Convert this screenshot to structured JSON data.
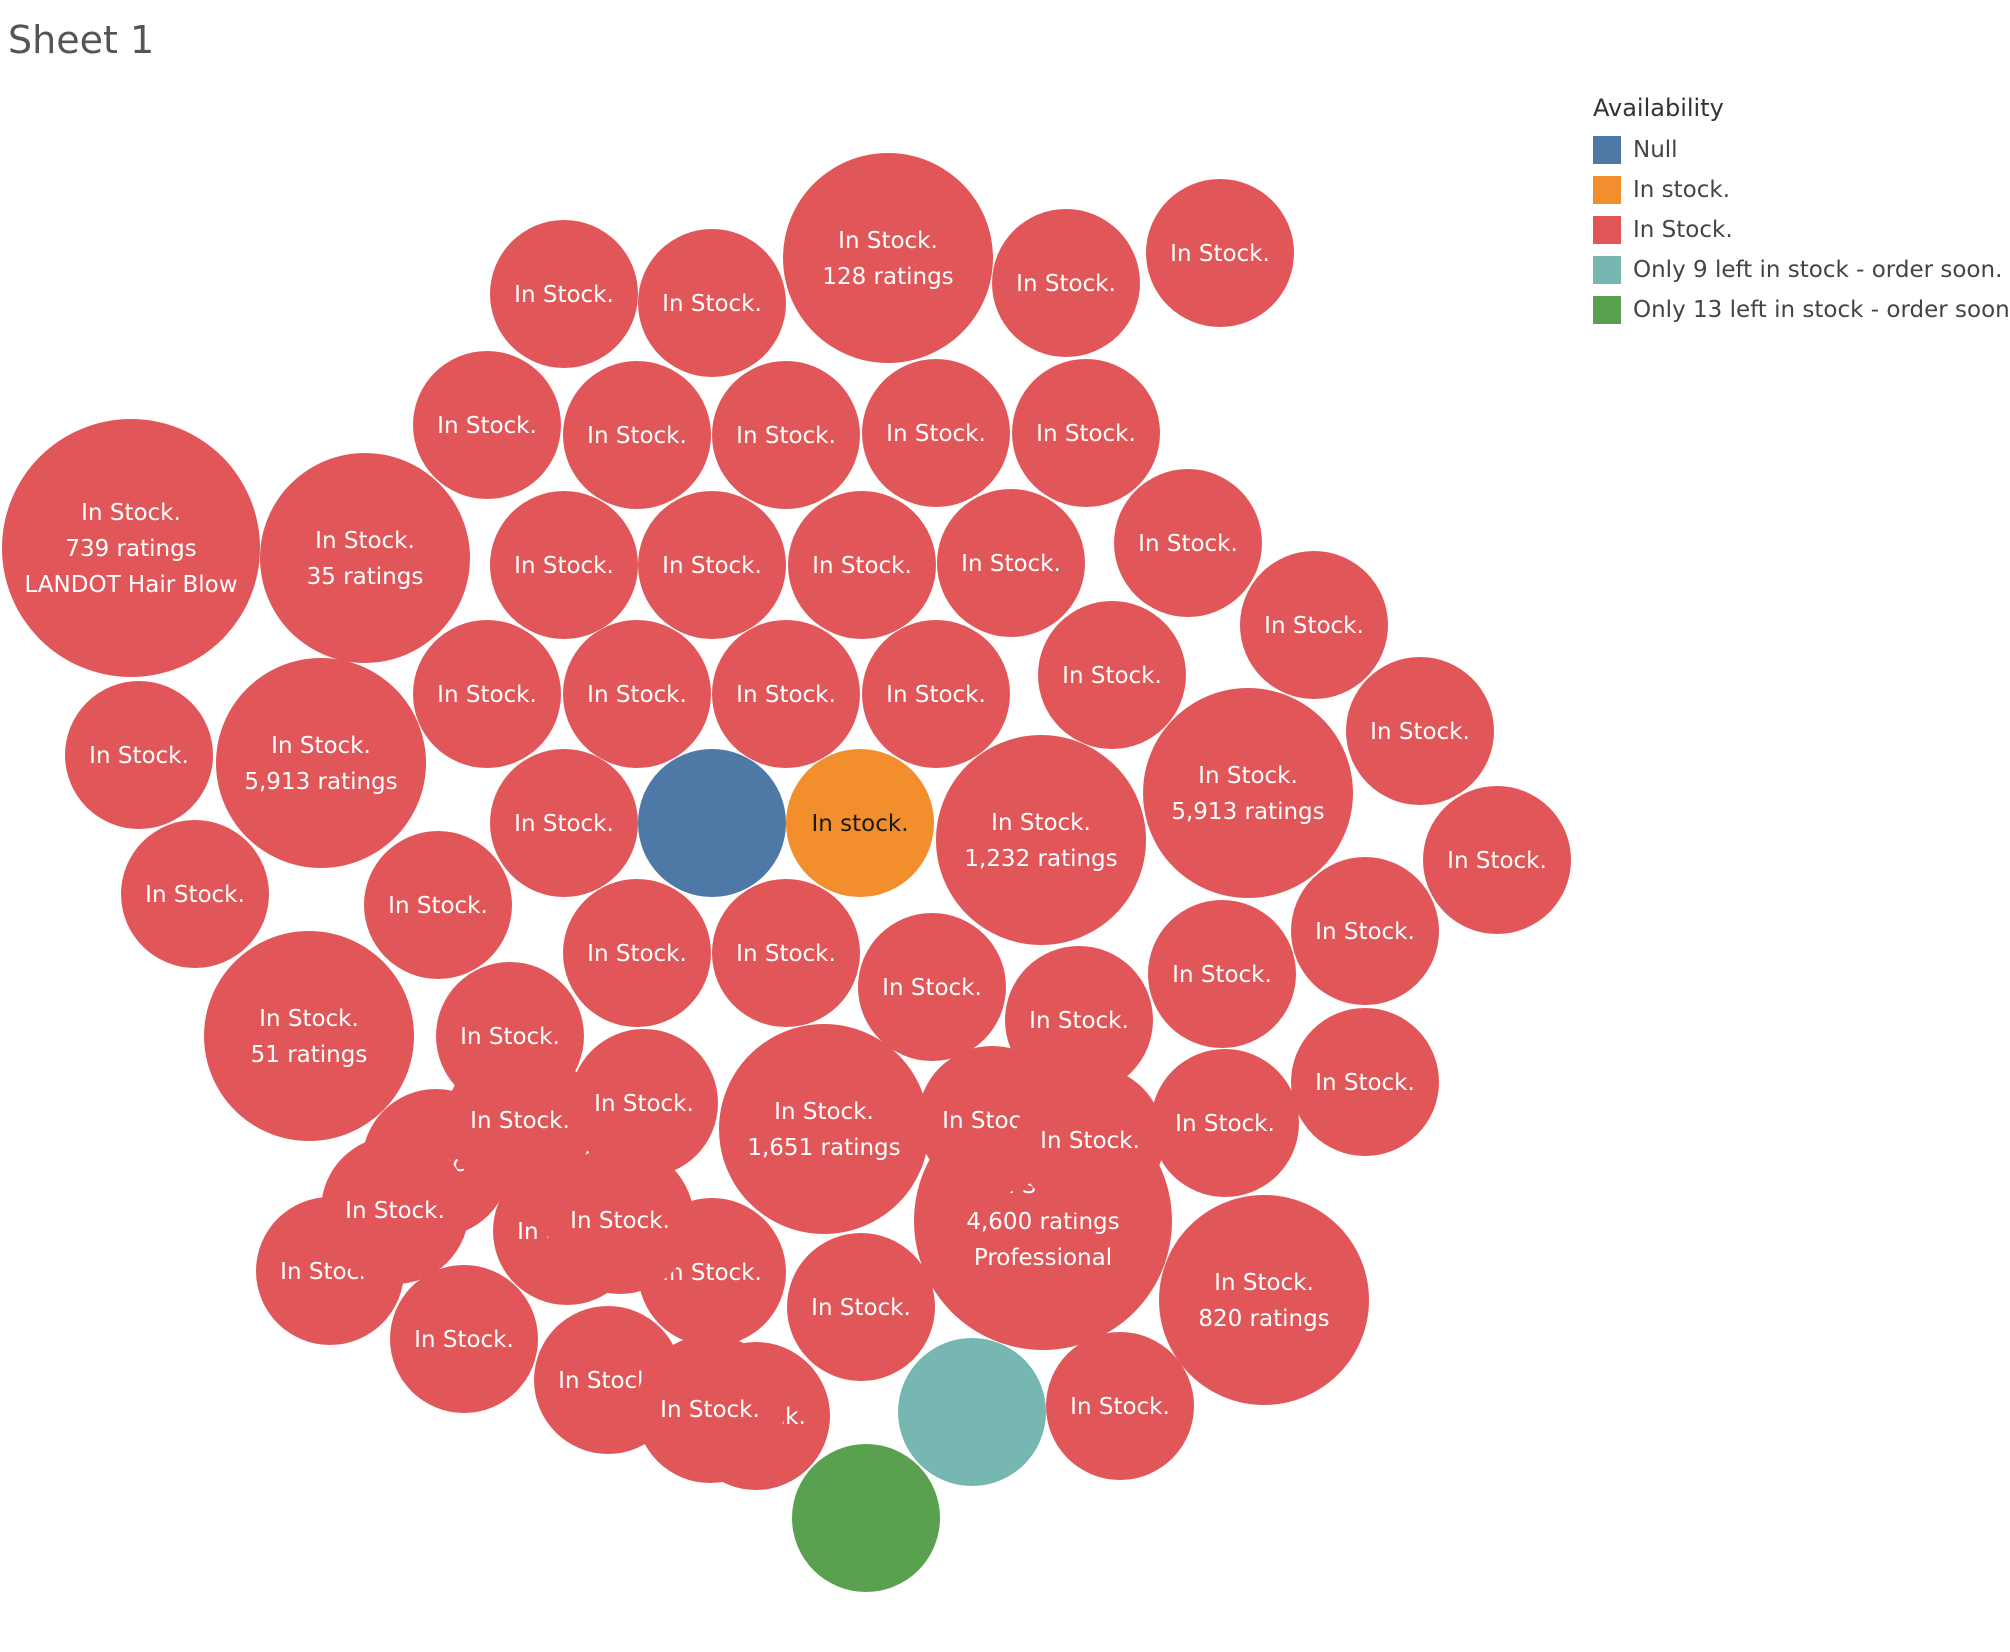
{
  "sheet": {
    "title": "Sheet 1"
  },
  "colors": {
    "Null": "#4e79a7",
    "In stock.": "#f28e2b",
    "In Stock.": "#e15759",
    "Only 9 left in stock - order soon.": "#76b7b2",
    "Only 13 left in stock - order soon.": "#59a14f"
  },
  "legend": {
    "title": "Availability",
    "items": [
      {
        "label": "Null",
        "color": "#4e79a7"
      },
      {
        "label": "In stock.",
        "color": "#f28e2b"
      },
      {
        "label": "In Stock.",
        "color": "#e15759"
      },
      {
        "label": "Only 9 left in stock - order soon.",
        "color": "#76b7b2"
      },
      {
        "label": "Only 13 left in stock - order soon.",
        "color": "#59a14f"
      }
    ]
  },
  "chart_data": {
    "type": "packed-bubble",
    "color_field": "Availability",
    "bubbles": [
      {
        "availability": "In Stock.",
        "lines": [
          "In Stock.",
          "739 ratings",
          "LANDOT Hair Blow"
        ]
      },
      {
        "availability": "In Stock.",
        "lines": [
          "In Stock.",
          "35 ratings"
        ]
      },
      {
        "availability": "In Stock.",
        "lines": [
          "In Stock.",
          "128 ratings"
        ]
      },
      {
        "availability": "In Stock.",
        "lines": [
          "In Stock.",
          "5,913 ratings"
        ]
      },
      {
        "availability": "In Stock.",
        "lines": [
          "In Stock.",
          "5,913 ratings"
        ]
      },
      {
        "availability": "In Stock.",
        "lines": [
          "In Stock.",
          "1,232 ratings"
        ]
      },
      {
        "availability": "In Stock.",
        "lines": [
          "In Stock.",
          "51 ratings"
        ]
      },
      {
        "availability": "In Stock.",
        "lines": [
          "In Stock.",
          "1,651 ratings"
        ]
      },
      {
        "availability": "In Stock.",
        "lines": [
          "In Stock.",
          "4,600 ratings",
          "Professional"
        ]
      },
      {
        "availability": "In Stock.",
        "lines": [
          "In Stock.",
          "820 ratings"
        ]
      },
      {
        "availability": "Null",
        "lines": []
      },
      {
        "availability": "In stock.",
        "lines": [
          "In stock."
        ]
      },
      {
        "availability": "Only 9 left in stock - order soon.",
        "lines": []
      },
      {
        "availability": "Only 13 left in stock - order soon.",
        "lines": []
      },
      {
        "availability": "In Stock.",
        "lines": [
          "In Stock."
        ]
      },
      {
        "availability": "In Stock.",
        "lines": [
          "In Stock."
        ]
      },
      {
        "availability": "In Stock.",
        "lines": [
          "In Stock."
        ]
      },
      {
        "availability": "In Stock.",
        "lines": [
          "In Stock."
        ]
      },
      {
        "availability": "In Stock.",
        "lines": [
          "In Stock."
        ]
      },
      {
        "availability": "In Stock.",
        "lines": [
          "In Stock."
        ]
      },
      {
        "availability": "In Stock.",
        "lines": [
          "In Stock."
        ]
      },
      {
        "availability": "In Stock.",
        "lines": [
          "In Stock."
        ]
      },
      {
        "availability": "In Stock.",
        "lines": [
          "In Stock."
        ]
      },
      {
        "availability": "In Stock.",
        "lines": [
          "In Stock."
        ]
      },
      {
        "availability": "In Stock.",
        "lines": [
          "In Stock."
        ]
      },
      {
        "availability": "In Stock.",
        "lines": [
          "In Stock."
        ]
      },
      {
        "availability": "In Stock.",
        "lines": [
          "In Stock."
        ]
      },
      {
        "availability": "In Stock.",
        "lines": [
          "In Stock."
        ]
      },
      {
        "availability": "In Stock.",
        "lines": [
          "In Stock."
        ]
      },
      {
        "availability": "In Stock.",
        "lines": [
          "In Stock."
        ]
      },
      {
        "availability": "In Stock.",
        "lines": [
          "In Stock."
        ]
      },
      {
        "availability": "In Stock.",
        "lines": [
          "In Stock."
        ]
      },
      {
        "availability": "In Stock.",
        "lines": [
          "In Stock."
        ]
      },
      {
        "availability": "In Stock.",
        "lines": [
          "In Stock."
        ]
      },
      {
        "availability": "In Stock.",
        "lines": [
          "In Stock."
        ]
      },
      {
        "availability": "In Stock.",
        "lines": [
          "In Stock."
        ]
      },
      {
        "availability": "In Stock.",
        "lines": [
          "In Stock."
        ]
      },
      {
        "availability": "In Stock.",
        "lines": [
          "In Stock."
        ]
      },
      {
        "availability": "In Stock.",
        "lines": [
          "In Stock."
        ]
      },
      {
        "availability": "In Stock.",
        "lines": [
          "In Stock."
        ]
      },
      {
        "availability": "In Stock.",
        "lines": [
          "In Stock."
        ]
      },
      {
        "availability": "In Stock.",
        "lines": [
          "In Stock."
        ]
      },
      {
        "availability": "In Stock.",
        "lines": [
          "In Stock."
        ]
      },
      {
        "availability": "In Stock.",
        "lines": [
          "In Stock."
        ]
      },
      {
        "availability": "In Stock.",
        "lines": [
          "In Stock."
        ]
      },
      {
        "availability": "In Stock.",
        "lines": [
          "In Stock."
        ]
      },
      {
        "availability": "In Stock.",
        "lines": [
          "In Stock."
        ]
      },
      {
        "availability": "In Stock.",
        "lines": [
          "In Stock."
        ]
      },
      {
        "availability": "In Stock.",
        "lines": [
          "In Stock."
        ]
      },
      {
        "availability": "In Stock.",
        "lines": [
          "In Stock."
        ]
      },
      {
        "availability": "In Stock.",
        "lines": [
          "In Stock."
        ]
      },
      {
        "availability": "In Stock.",
        "lines": [
          "In Stock."
        ]
      },
      {
        "availability": "In Stock.",
        "lines": [
          "In Stock."
        ]
      },
      {
        "availability": "In Stock.",
        "lines": [
          "In Stock."
        ]
      },
      {
        "availability": "In Stock.",
        "lines": [
          "In Stock."
        ]
      },
      {
        "availability": "In Stock.",
        "lines": [
          "In Stock."
        ]
      },
      {
        "availability": "In Stock.",
        "lines": [
          "In Stock."
        ]
      },
      {
        "availability": "In Stock.",
        "lines": [
          "In Stock."
        ]
      },
      {
        "availability": "In Stock.",
        "lines": [
          "In Stock."
        ]
      },
      {
        "availability": "In Stock.",
        "lines": [
          "In Stock."
        ]
      },
      {
        "availability": "In Stock.",
        "lines": [
          "In Stock."
        ]
      },
      {
        "availability": "In Stock.",
        "lines": [
          "In Stock."
        ]
      },
      {
        "availability": "In Stock.",
        "lines": [
          "In Stock."
        ]
      },
      {
        "availability": "In Stock.",
        "lines": [
          "In Stock."
        ]
      },
      {
        "availability": "In Stock.",
        "lines": [
          "In Stock."
        ]
      }
    ]
  }
}
